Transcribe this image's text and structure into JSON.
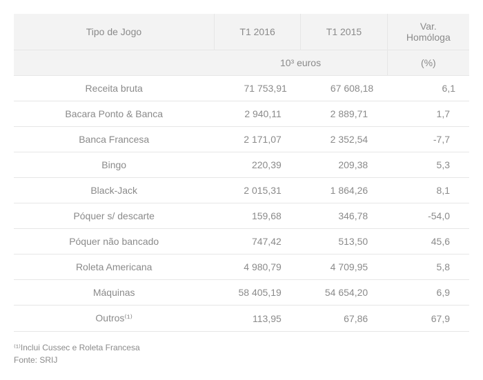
{
  "colors": {
    "header_bg": "#f3f3f3",
    "header_text": "#8a8a8a",
    "body_text": "#8a8a8a",
    "row_border": "#e6e6e6",
    "footnote_text": "#8a8a8a"
  },
  "header": {
    "col1": "Tipo de Jogo",
    "col2": "T1 2016",
    "col3": "T1 2015",
    "col4_line1": "Var.",
    "col4_line2": "Homóloga"
  },
  "units": {
    "left": "10³ euros",
    "right": "(%)"
  },
  "rows": [
    {
      "name": "Receita bruta",
      "t1_2016": "71 753,91",
      "t1_2015": "67 608,18",
      "var": "6,1"
    },
    {
      "name": "Bacara Ponto & Banca",
      "t1_2016": "2 940,11",
      "t1_2015": "2 889,71",
      "var": "1,7"
    },
    {
      "name": "Banca Francesa",
      "t1_2016": "2 171,07",
      "t1_2015": "2 352,54",
      "var": "-7,7"
    },
    {
      "name": "Bingo",
      "t1_2016": "220,39",
      "t1_2015": "209,38",
      "var": "5,3"
    },
    {
      "name": "Black-Jack",
      "t1_2016": "2 015,31",
      "t1_2015": "1 864,26",
      "var": "8,1"
    },
    {
      "name": "Póquer s/ descarte",
      "t1_2016": "159,68",
      "t1_2015": "346,78",
      "var": "-54,0"
    },
    {
      "name": "Póquer não bancado",
      "t1_2016": "747,42",
      "t1_2015": "513,50",
      "var": "45,6"
    },
    {
      "name": "Roleta Americana",
      "t1_2016": "4 980,79",
      "t1_2015": "4 709,95",
      "var": "5,8"
    },
    {
      "name": "Máquinas",
      "t1_2016": "58 405,19",
      "t1_2015": "54 654,20",
      "var": "6,9"
    },
    {
      "name": "Outros⁽¹⁾",
      "t1_2016": "113,95",
      "t1_2015": "67,86",
      "var": "67,9"
    }
  ],
  "footnote": {
    "line1": "⁽¹⁾Inclui Cussec e Roleta Francesa",
    "line2": "Fonte: SRIJ"
  }
}
